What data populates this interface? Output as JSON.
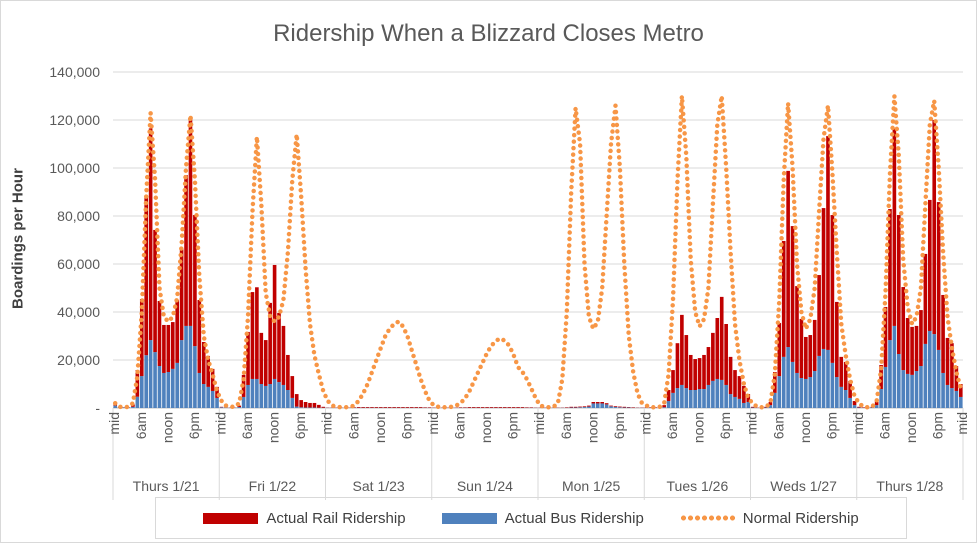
{
  "chart_data": {
    "type": "bar",
    "stacked": true,
    "title": "Ridership When a Blizzard Closes Metro",
    "ylabel": "Boardings per Hour",
    "xlabel": "",
    "ylim": [
      0,
      140000
    ],
    "yticks": [
      "-",
      "20,000",
      "40,000",
      "60,000",
      "80,000",
      "100,000",
      "120,000",
      "140,000"
    ],
    "ytick_values": [
      0,
      20000,
      40000,
      60000,
      80000,
      100000,
      120000,
      140000
    ],
    "grid": true,
    "legend_position": "bottom",
    "hour_tick_labels": [
      "mid",
      "6am",
      "noon",
      "6pm"
    ],
    "final_tick_label": "mid",
    "colors": {
      "rail": "#C00000",
      "bus": "#4F81BD",
      "normal": "#F79646",
      "grid": "#D9D9D9"
    },
    "legend": [
      "Actual Rail Ridership",
      "Actual Bus Ridership",
      "Normal Ridership"
    ],
    "series_order": [
      "bus",
      "rail",
      "normal"
    ],
    "days": [
      {
        "label": "Thurs 1/21",
        "rail": [
          500,
          200,
          100,
          100,
          1000,
          11100,
          32100,
          65600,
          88200,
          50900,
          27100,
          20000,
          19600,
          19500,
          26200,
          38400,
          62800,
          86500,
          54600,
          30400,
          17500,
          12900,
          9200,
          4600
        ],
        "bus": [
          1000,
          300,
          200,
          200,
          500,
          4700,
          13300,
          22000,
          28300,
          23300,
          17500,
          14600,
          15000,
          16300,
          18800,
          28300,
          34200,
          34200,
          25800,
          14600,
          10000,
          8800,
          7100,
          4200
        ],
        "normal": [
          2000,
          500,
          300,
          500,
          2000,
          13000,
          40000,
          88000,
          123000,
          95000,
          50000,
          38000,
          36000,
          38000,
          46000,
          68000,
          100000,
          122000,
          95000,
          55000,
          30000,
          20000,
          14000,
          7000
        ]
      },
      {
        "label": "Fri 1/22",
        "rail": [
          200,
          100,
          100,
          100,
          600,
          9200,
          22100,
          36200,
          38200,
          21300,
          19100,
          33800,
          47500,
          28800,
          24600,
          14600,
          9100,
          5200,
          3000,
          2300,
          1900,
          1900,
          1200,
          400
        ],
        "bus": [
          300,
          200,
          100,
          100,
          400,
          4600,
          9600,
          12100,
          12100,
          10000,
          9200,
          10000,
          12100,
          10800,
          9600,
          7500,
          4200,
          600,
          300,
          200,
          200,
          200,
          100,
          100
        ],
        "normal": [
          3000,
          1000,
          500,
          500,
          2000,
          12000,
          38000,
          82000,
          113000,
          85000,
          48000,
          38000,
          36000,
          38000,
          45000,
          65000,
          95000,
          114000,
          88000,
          58000,
          35000,
          22000,
          14000,
          7000
        ]
      },
      {
        "label": "Sat 1/23",
        "rail": [
          100,
          100,
          100,
          100,
          100,
          100,
          200,
          300,
          300,
          300,
          300,
          300,
          300,
          300,
          300,
          300,
          300,
          300,
          300,
          300,
          300,
          300,
          200,
          200
        ],
        "bus": [
          100,
          100,
          100,
          100,
          100,
          100,
          100,
          100,
          100,
          100,
          100,
          100,
          100,
          100,
          100,
          100,
          100,
          100,
          100,
          100,
          100,
          100,
          100,
          100
        ],
        "normal": [
          3000,
          1000,
          500,
          300,
          300,
          500,
          1000,
          3000,
          6000,
          10000,
          15000,
          20000,
          25000,
          30000,
          33000,
          35000,
          36000,
          34000,
          30000,
          24000,
          18000,
          12000,
          7000,
          3000
        ]
      },
      {
        "label": "Sun 1/24",
        "rail": [
          100,
          100,
          100,
          100,
          100,
          100,
          200,
          200,
          300,
          300,
          300,
          300,
          300,
          300,
          300,
          300,
          300,
          300,
          300,
          300,
          300,
          200,
          200,
          100
        ],
        "bus": [
          100,
          100,
          100,
          100,
          100,
          100,
          100,
          100,
          100,
          100,
          100,
          100,
          100,
          100,
          100,
          100,
          100,
          100,
          100,
          100,
          100,
          100,
          100,
          100
        ],
        "normal": [
          1000,
          500,
          300,
          300,
          500,
          1000,
          2000,
          4000,
          7000,
          11000,
          15000,
          19000,
          23000,
          26000,
          28000,
          29000,
          28000,
          26000,
          22000,
          17000,
          15000,
          12000,
          8000,
          4000
        ]
      },
      {
        "label": "Mon 1/25",
        "rail": [
          100,
          100,
          100,
          100,
          100,
          100,
          200,
          300,
          300,
          300,
          300,
          400,
          600,
          600,
          600,
          500,
          300,
          300,
          300,
          300,
          200,
          200,
          100,
          100
        ],
        "bus": [
          100,
          100,
          100,
          100,
          100,
          100,
          100,
          200,
          200,
          300,
          400,
          600,
          1900,
          1900,
          1900,
          1500,
          700,
          500,
          300,
          200,
          200,
          100,
          100,
          100
        ],
        "normal": [
          1000,
          500,
          300,
          500,
          2000,
          12000,
          40000,
          90000,
          125000,
          110000,
          60000,
          38000,
          33000,
          36000,
          50000,
          80000,
          110000,
          126000,
          100000,
          60000,
          30000,
          15000,
          6000,
          2000
        ]
      },
      {
        "label": "Tues 1/26",
        "rail": [
          200,
          200,
          200,
          200,
          900,
          4600,
          9500,
          18700,
          29200,
          22100,
          14600,
          12900,
          12900,
          14200,
          15800,
          20000,
          25400,
          34600,
          25400,
          15500,
          11200,
          9500,
          7100,
          3300
        ],
        "bus": [
          100,
          100,
          100,
          100,
          300,
          2900,
          6300,
          8300,
          9600,
          8300,
          7500,
          7500,
          7900,
          7900,
          9600,
          11300,
          12100,
          11700,
          9600,
          5800,
          4600,
          3800,
          2100,
          2500
        ],
        "normal": [
          1000,
          300,
          300,
          500,
          2000,
          14000,
          45000,
          95000,
          130000,
          105000,
          62000,
          40000,
          34000,
          37000,
          50000,
          85000,
          118000,
          130000,
          100000,
          65000,
          35000,
          20000,
          10000,
          4000
        ]
      },
      {
        "label": "Weds 1/27",
        "rail": [
          300,
          100,
          200,
          300,
          1300,
          8700,
          22100,
          48300,
          73400,
          56600,
          36200,
          24600,
          17500,
          17500,
          21300,
          33700,
          58700,
          89100,
          61600,
          31300,
          12500,
          11700,
          7100,
          1700
        ],
        "bus": [
          200,
          100,
          100,
          200,
          1200,
          6300,
          13300,
          21300,
          25400,
          19200,
          14600,
          12500,
          12100,
          12900,
          15400,
          21700,
          24600,
          24200,
          18800,
          12900,
          8800,
          7500,
          4200,
          1200
        ],
        "normal": [
          2000,
          500,
          300,
          500,
          2000,
          14000,
          45000,
          95000,
          127000,
          100000,
          60000,
          40000,
          33000,
          37000,
          50000,
          82000,
          112000,
          126000,
          98000,
          65000,
          35000,
          22000,
          12000,
          5000
        ]
      },
      {
        "label": "Thurs 1/28",
        "rail": [
          300,
          200,
          100,
          300,
          1700,
          10000,
          25000,
          54600,
          82100,
          57900,
          34600,
          23300,
          20000,
          18800,
          23300,
          37500,
          54600,
          89200,
          61600,
          32500,
          19600,
          18700,
          10400,
          5400
        ],
        "bus": [
          200,
          100,
          100,
          200,
          1200,
          7900,
          17100,
          28300,
          34200,
          22500,
          15800,
          14200,
          13800,
          15400,
          17500,
          26700,
          32100,
          30800,
          24200,
          14600,
          9600,
          8300,
          7100,
          4600
        ],
        "normal": [
          2000,
          500,
          300,
          500,
          3000,
          16000,
          48000,
          98000,
          130000,
          105000,
          62000,
          42000,
          35000,
          38000,
          50000,
          85000,
          118000,
          128000,
          100000,
          65000,
          38000,
          25000,
          15000,
          8000
        ]
      }
    ]
  }
}
